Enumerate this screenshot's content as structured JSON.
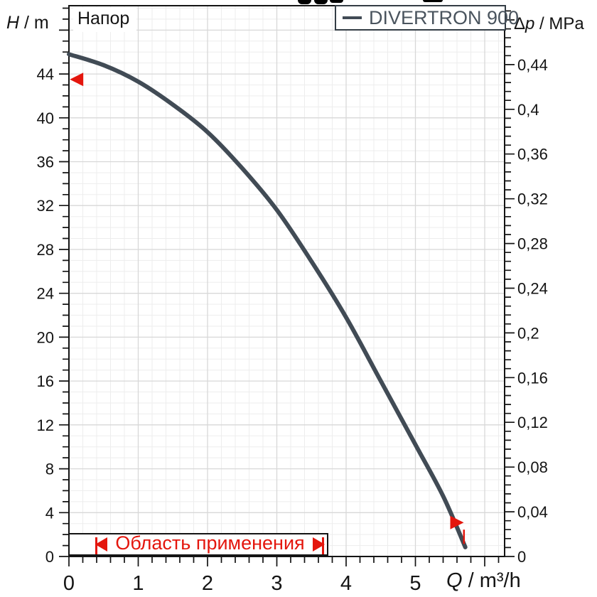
{
  "labels": {
    "plot_label": "Напор",
    "left_axis": {
      "symbol": "H",
      "rest": " / m"
    },
    "right_axis": {
      "delta": "Δ",
      "symbol": "p",
      "rest": " / MPa"
    },
    "x_axis": {
      "symbol": "Q",
      "rest": " / m³/h"
    },
    "legend": {
      "series": "DIVERTRON 900"
    },
    "application_range": "Область применения"
  },
  "colors": {
    "curve": "#414b55",
    "legend_text": "#4a545e",
    "red": "#e4160d",
    "grid_minor": "#ededed",
    "grid_major": "#d8d8d8",
    "axis": "#141414",
    "background": "#ffffff"
  },
  "chart_data": {
    "type": "line",
    "title": "Напор",
    "legend_position": "top-right",
    "grid": "minor and major gridlines on",
    "x": {
      "label": "Q / m³/h",
      "min": 0,
      "max": 6.29,
      "major_step": 1,
      "minor_step": 0.2,
      "tick_labels": [
        "0",
        "1",
        "2",
        "3",
        "4",
        "5"
      ]
    },
    "y_left": {
      "label": "H / m",
      "min": 0,
      "max": 50.2,
      "major_step": 4,
      "minor_step": 1,
      "tick_labels": [
        "0",
        "4",
        "8",
        "12",
        "16",
        "20",
        "24",
        "28",
        "32",
        "36",
        "40",
        "44"
      ]
    },
    "y_right": {
      "label": "Δp / MPa",
      "min": 0,
      "max": 0.493,
      "major_step": 0.04,
      "minor_step": 0.008,
      "tick_labels": [
        "0",
        "0,04",
        "0,08",
        "0,12",
        "0,16",
        "0,2",
        "0,24",
        "0,28",
        "0,32",
        "0,36",
        "0,4",
        "0,44"
      ]
    },
    "series": [
      {
        "name": "DIVERTRON 900",
        "color": "#414b55",
        "points": [
          [
            0,
            45.8
          ],
          [
            0.5,
            44.8
          ],
          [
            1,
            43.3
          ],
          [
            1.5,
            41.2
          ],
          [
            2,
            38.7
          ],
          [
            2.5,
            35.4
          ],
          [
            3,
            31.6
          ],
          [
            3.5,
            26.9
          ],
          [
            4,
            21.8
          ],
          [
            4.5,
            16.0
          ],
          [
            5,
            10.2
          ],
          [
            5.4,
            5.5
          ],
          [
            5.72,
            0.85
          ]
        ]
      }
    ],
    "annotations": {
      "left_arrow": {
        "q": 0.11,
        "h": 43.5,
        "direction": "left"
      },
      "right_arrow": {
        "q": 5.6,
        "h": 3.1,
        "direction": "right"
      },
      "range_end_line": {
        "q": 5.7,
        "h_from": 1.15,
        "h_to": 2.45
      },
      "application_range": {
        "q_from": 0.38,
        "q_to": 3.66,
        "label": "Область применения"
      }
    }
  }
}
